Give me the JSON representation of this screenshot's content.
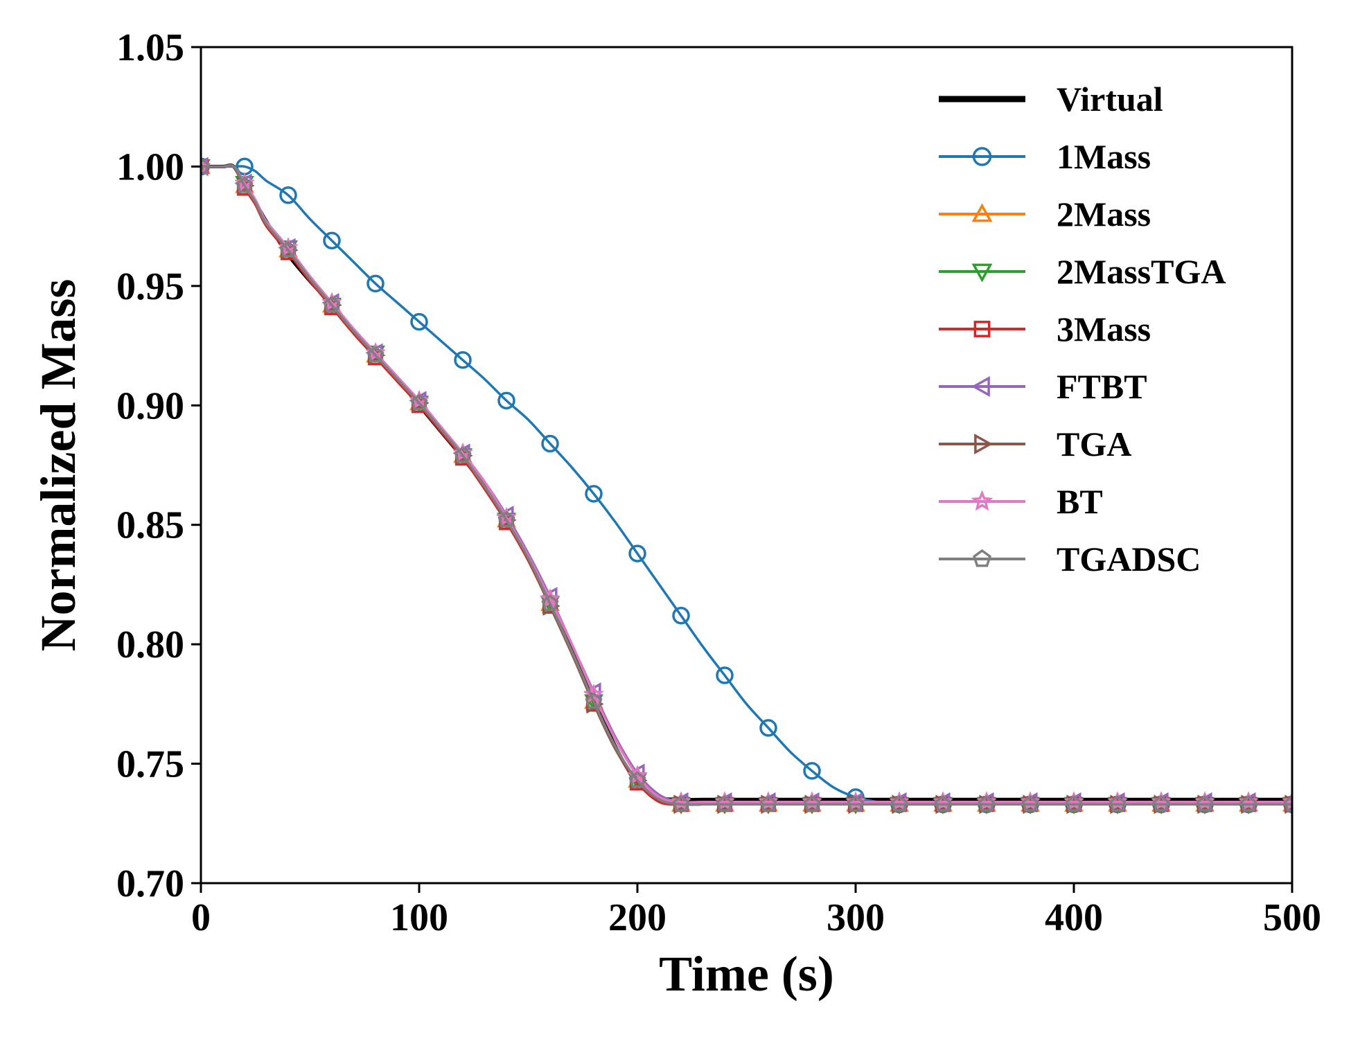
{
  "chart_data": {
    "type": "line",
    "title": "",
    "xlabel": "Time (s)",
    "ylabel": "Normalized Mass",
    "xlim": [
      0,
      500
    ],
    "ylim": [
      0.7,
      1.05
    ],
    "xticks": [
      0,
      100,
      200,
      300,
      400,
      500
    ],
    "xtick_labels": [
      "0",
      "100",
      "200",
      "300",
      "400",
      "500"
    ],
    "yticks": [
      0.7,
      0.75,
      0.8,
      0.85,
      0.9,
      0.95,
      1.0,
      1.05
    ],
    "ytick_labels": [
      "0.70",
      "0.75",
      "0.80",
      "0.85",
      "0.90",
      "0.95",
      "1.00",
      "1.05"
    ],
    "grid": false,
    "legend_position": "top-right",
    "x": [
      0,
      10,
      15,
      20,
      25,
      30,
      40,
      50,
      60,
      70,
      80,
      90,
      100,
      110,
      120,
      130,
      140,
      150,
      160,
      170,
      180,
      190,
      200,
      210,
      220,
      230,
      240,
      250,
      260,
      270,
      280,
      290,
      300,
      310,
      320,
      340,
      360,
      380,
      400,
      420,
      440,
      460,
      480,
      500
    ],
    "series": [
      {
        "name": "Virtual",
        "color": "#000000",
        "marker": "none",
        "values": [
          1.0,
          1.0,
          1.0,
          0.992,
          0.985,
          0.977,
          0.963,
          0.952,
          0.942,
          0.931,
          0.921,
          0.911,
          0.9,
          0.889,
          0.878,
          0.866,
          0.852,
          0.836,
          0.818,
          0.799,
          0.778,
          0.757,
          0.742,
          0.736,
          0.735,
          0.735,
          0.735,
          0.735,
          0.735,
          0.735,
          0.735,
          0.735,
          0.735,
          0.735,
          0.735,
          0.735,
          0.735,
          0.735,
          0.735,
          0.735,
          0.735,
          0.735,
          0.735,
          0.735
        ]
      },
      {
        "name": "1Mass",
        "color": "#1f77b4",
        "marker": "circle",
        "values": [
          1.0,
          1.0,
          1.0,
          1.0,
          0.998,
          0.994,
          0.988,
          0.978,
          0.969,
          0.96,
          0.951,
          0.943,
          0.935,
          0.927,
          0.919,
          0.911,
          0.902,
          0.894,
          0.884,
          0.874,
          0.863,
          0.851,
          0.838,
          0.825,
          0.812,
          0.799,
          0.787,
          0.775,
          0.765,
          0.755,
          0.747,
          0.74,
          0.736,
          0.734,
          0.733,
          0.733,
          0.733,
          0.733,
          0.733,
          0.733,
          0.733,
          0.733,
          0.733,
          0.733
        ]
      },
      {
        "name": "2Mass",
        "color": "#ff7f0e",
        "marker": "triangle-up",
        "values": [
          1.0,
          1.0,
          1.0,
          0.992,
          0.985,
          0.976,
          0.965,
          0.953,
          0.942,
          0.931,
          0.921,
          0.911,
          0.901,
          0.89,
          0.879,
          0.866,
          0.852,
          0.836,
          0.817,
          0.797,
          0.776,
          0.757,
          0.743,
          0.735,
          0.733,
          0.733,
          0.733,
          0.733,
          0.733,
          0.733,
          0.733,
          0.733,
          0.733,
          0.733,
          0.733,
          0.733,
          0.733,
          0.733,
          0.733,
          0.733,
          0.733,
          0.733,
          0.733,
          0.733
        ]
      },
      {
        "name": "2MassTGA",
        "color": "#2ca02c",
        "marker": "triangle-down",
        "values": [
          1.0,
          1.0,
          1.0,
          0.993,
          0.985,
          0.977,
          0.966,
          0.953,
          0.942,
          0.931,
          0.922,
          0.911,
          0.901,
          0.89,
          0.879,
          0.866,
          0.852,
          0.836,
          0.817,
          0.797,
          0.776,
          0.757,
          0.743,
          0.735,
          0.733,
          0.733,
          0.733,
          0.733,
          0.733,
          0.733,
          0.733,
          0.733,
          0.733,
          0.733,
          0.733,
          0.733,
          0.733,
          0.733,
          0.733,
          0.733,
          0.733,
          0.733,
          0.733,
          0.733
        ]
      },
      {
        "name": "3Mass",
        "color": "#d62728",
        "marker": "square",
        "values": [
          1.0,
          1.0,
          1.0,
          0.991,
          0.984,
          0.975,
          0.964,
          0.952,
          0.941,
          0.93,
          0.92,
          0.91,
          0.9,
          0.889,
          0.878,
          0.865,
          0.851,
          0.835,
          0.816,
          0.796,
          0.775,
          0.756,
          0.742,
          0.734,
          0.733,
          0.733,
          0.733,
          0.733,
          0.733,
          0.733,
          0.733,
          0.733,
          0.733,
          0.733,
          0.733,
          0.733,
          0.733,
          0.733,
          0.733,
          0.733,
          0.733,
          0.733,
          0.733,
          0.733
        ]
      },
      {
        "name": "FTBT",
        "color": "#9467bd",
        "marker": "triangle-left",
        "values": [
          1.0,
          1.0,
          1.0,
          0.993,
          0.986,
          0.977,
          0.966,
          0.954,
          0.943,
          0.932,
          0.922,
          0.912,
          0.902,
          0.891,
          0.88,
          0.868,
          0.854,
          0.838,
          0.82,
          0.8,
          0.78,
          0.761,
          0.746,
          0.737,
          0.734,
          0.734,
          0.734,
          0.734,
          0.734,
          0.734,
          0.734,
          0.734,
          0.734,
          0.734,
          0.734,
          0.734,
          0.734,
          0.734,
          0.734,
          0.734,
          0.734,
          0.734,
          0.734,
          0.734
        ]
      },
      {
        "name": "TGA",
        "color": "#8c564b",
        "marker": "triangle-right",
        "values": [
          1.0,
          1.0,
          1.0,
          0.992,
          0.985,
          0.976,
          0.965,
          0.953,
          0.942,
          0.931,
          0.921,
          0.911,
          0.901,
          0.89,
          0.879,
          0.866,
          0.852,
          0.836,
          0.816,
          0.796,
          0.775,
          0.756,
          0.743,
          0.735,
          0.733,
          0.733,
          0.733,
          0.733,
          0.733,
          0.733,
          0.733,
          0.733,
          0.733,
          0.733,
          0.733,
          0.733,
          0.733,
          0.733,
          0.733,
          0.733,
          0.733,
          0.733,
          0.733,
          0.733
        ]
      },
      {
        "name": "BT",
        "color": "#e377c2",
        "marker": "star",
        "values": [
          1.0,
          1.0,
          1.0,
          0.993,
          0.986,
          0.977,
          0.966,
          0.954,
          0.943,
          0.932,
          0.922,
          0.912,
          0.902,
          0.891,
          0.88,
          0.868,
          0.853,
          0.837,
          0.819,
          0.8,
          0.779,
          0.76,
          0.745,
          0.736,
          0.734,
          0.734,
          0.734,
          0.734,
          0.734,
          0.734,
          0.734,
          0.734,
          0.734,
          0.734,
          0.734,
          0.734,
          0.734,
          0.734,
          0.734,
          0.734,
          0.734,
          0.734,
          0.734,
          0.734
        ]
      },
      {
        "name": "TGADSC",
        "color": "#7f7f7f",
        "marker": "pentagon",
        "values": [
          1.0,
          1.0,
          1.0,
          0.992,
          0.985,
          0.976,
          0.965,
          0.953,
          0.942,
          0.931,
          0.921,
          0.911,
          0.901,
          0.89,
          0.879,
          0.866,
          0.852,
          0.836,
          0.817,
          0.797,
          0.776,
          0.757,
          0.743,
          0.735,
          0.733,
          0.733,
          0.733,
          0.733,
          0.733,
          0.733,
          0.733,
          0.733,
          0.733,
          0.733,
          0.733,
          0.733,
          0.733,
          0.733,
          0.733,
          0.733,
          0.733,
          0.733,
          0.733,
          0.733
        ]
      }
    ]
  }
}
